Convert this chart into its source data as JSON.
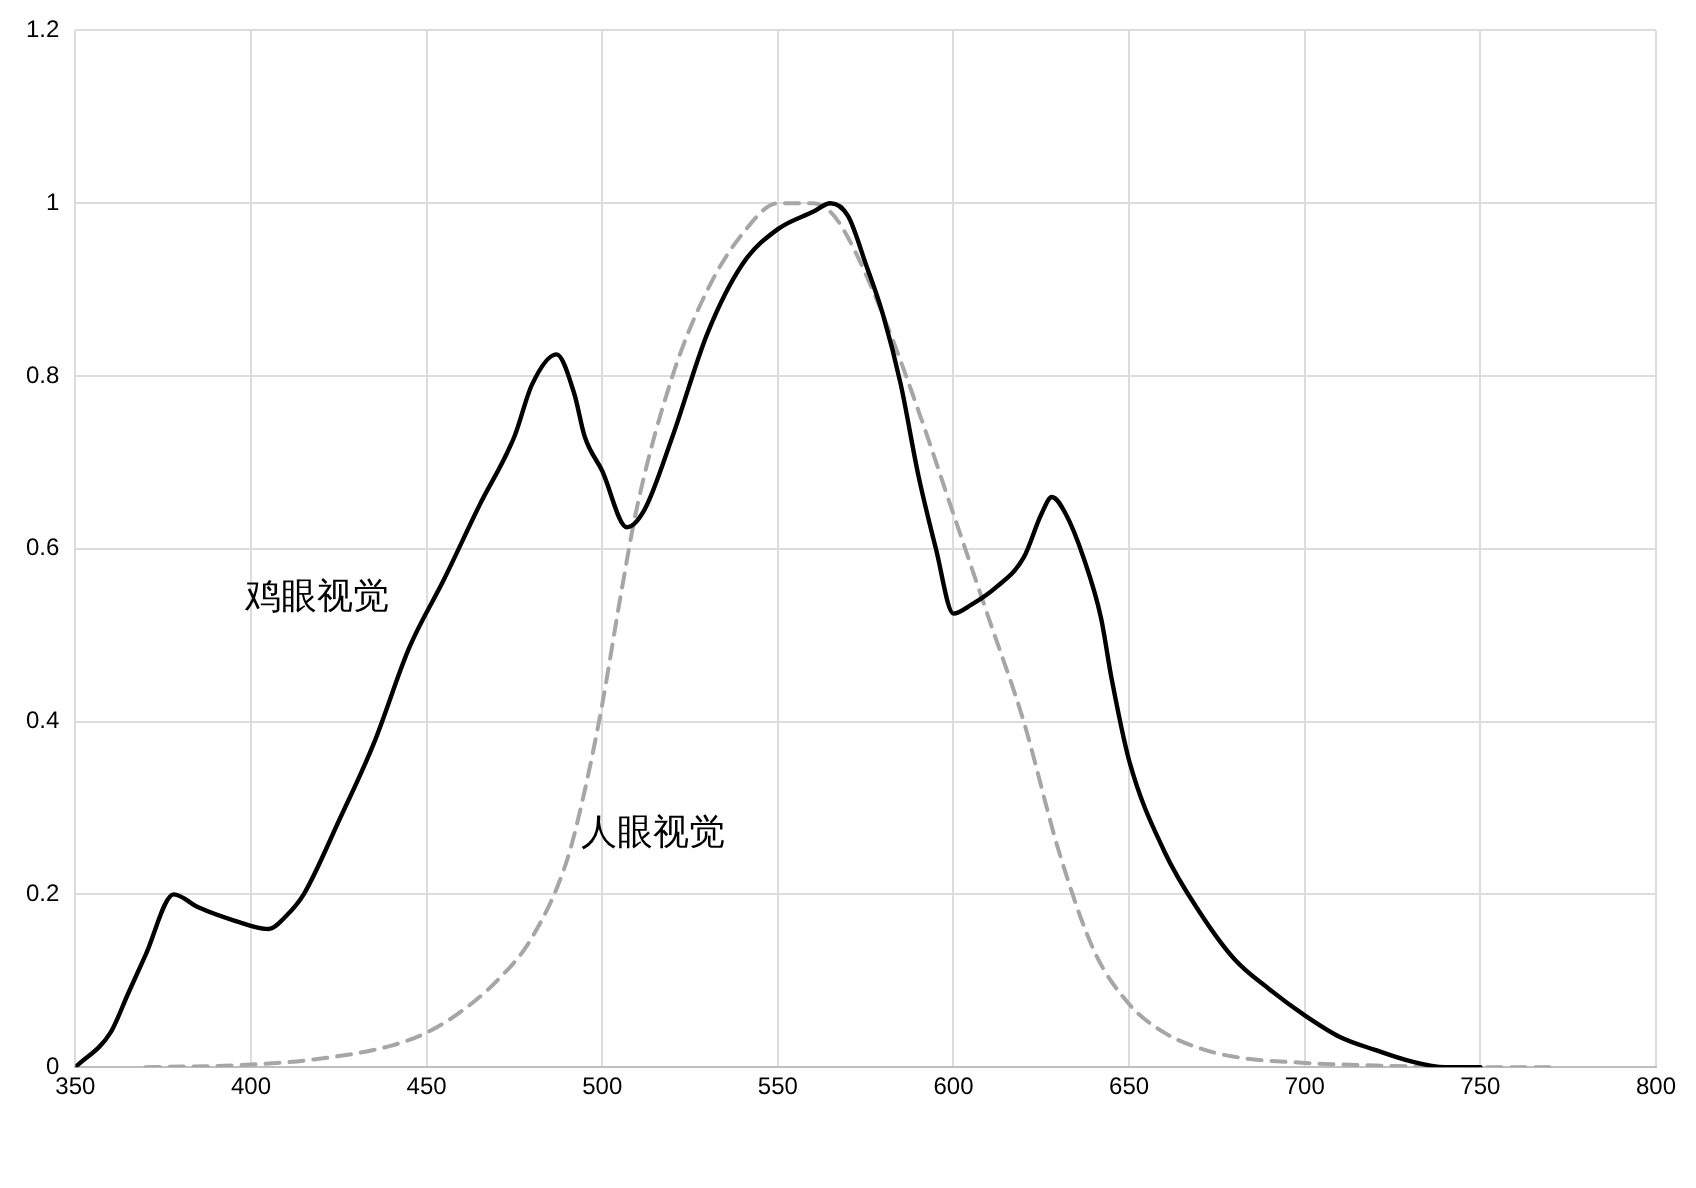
{
  "chart_data": {
    "type": "line",
    "xlim": [
      350,
      800
    ],
    "xticks": [
      350,
      400,
      450,
      500,
      550,
      600,
      650,
      700,
      750,
      800
    ],
    "ylim": [
      0,
      1.2
    ],
    "yticks": [
      0,
      0.2,
      0.4,
      0.6,
      0.8,
      1,
      1.2
    ],
    "grid": true,
    "legend": false,
    "marker": "none",
    "series": [
      {
        "name": "鸡眼视觉",
        "color": "#000000",
        "line_style": "solid",
        "x": [
          350,
          360,
          365,
          370,
          378,
          385,
          395,
          405,
          410,
          415,
          425,
          435,
          445,
          455,
          465,
          475,
          480,
          487,
          492,
          495,
          500,
          507,
          512,
          520,
          530,
          540,
          550,
          560,
          565,
          570,
          575,
          580,
          585,
          590,
          595,
          600,
          605,
          612,
          620,
          625,
          628,
          632,
          637,
          642,
          645,
          650,
          660,
          670,
          680,
          690,
          700,
          710,
          720,
          730,
          740,
          750
        ],
        "values": [
          0,
          0.04,
          0.085,
          0.13,
          0.2,
          0.185,
          0.17,
          0.16,
          0.175,
          0.2,
          0.285,
          0.375,
          0.485,
          0.565,
          0.65,
          0.73,
          0.79,
          0.825,
          0.78,
          0.73,
          0.69,
          0.625,
          0.645,
          0.73,
          0.85,
          0.93,
          0.97,
          0.99,
          1,
          0.985,
          0.93,
          0.87,
          0.79,
          0.685,
          0.6,
          0.525,
          0.535,
          0.555,
          0.59,
          0.64,
          0.66,
          0.64,
          0.59,
          0.52,
          0.45,
          0.355,
          0.25,
          0.18,
          0.125,
          0.09,
          0.06,
          0.035,
          0.02,
          0.007,
          0,
          0
        ]
      },
      {
        "name": "人眼视觉",
        "color": "#a6a6a6",
        "line_style": "dashed",
        "x": [
          370,
          400,
          420,
          440,
          450,
          460,
          470,
          480,
          490,
          495,
          500,
          505,
          510,
          520,
          530,
          540,
          550,
          555,
          560,
          565,
          570,
          580,
          590,
          600,
          610,
          620,
          630,
          640,
          650,
          660,
          670,
          680,
          700,
          720,
          750,
          770
        ],
        "values": [
          0,
          0.003,
          0.01,
          0.025,
          0.04,
          0.065,
          0.1,
          0.15,
          0.24,
          0.32,
          0.42,
          0.54,
          0.65,
          0.8,
          0.9,
          0.965,
          1,
          1,
          1,
          0.99,
          0.96,
          0.87,
          0.76,
          0.64,
          0.52,
          0.4,
          0.25,
          0.135,
          0.073,
          0.04,
          0.022,
          0.012,
          0.005,
          0.002,
          0,
          0
        ]
      }
    ]
  }
}
